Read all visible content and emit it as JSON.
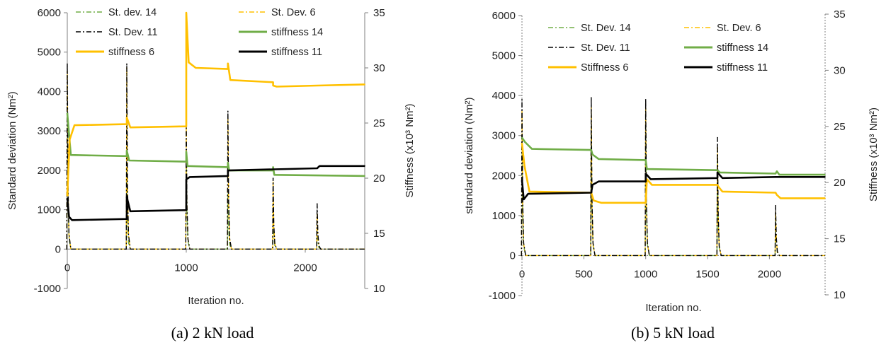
{
  "colors": {
    "orange": "#FFC000",
    "green": "#70AD47",
    "black": "#000000",
    "axis": "#7f7f7f"
  },
  "chart_data": [
    {
      "type": "line",
      "caption": "(a) 2 kN load",
      "xlabel": "Iteration no.",
      "ylabel": "Standard deviation (Nm²)",
      "y2label": "Stiffness (x10³ Nm²)",
      "xticks": [
        0,
        1000,
        2000
      ],
      "xlim": [
        0,
        2500
      ],
      "yticks": [
        -1000,
        0,
        1000,
        2000,
        3000,
        4000,
        5000,
        6000
      ],
      "ylim": [
        -1000,
        6000
      ],
      "y2ticks": [
        10,
        15,
        20,
        25,
        30,
        35
      ],
      "y2lim": [
        10,
        35
      ],
      "legend_position": "top",
      "series": [
        {
          "name": "St. dev. 14",
          "axis": "left",
          "color": "#70AD47",
          "style": "dashdot",
          "spikes": [
            [
              0,
              3600
            ],
            [
              500,
              2000
            ],
            [
              1000,
              2500
            ],
            [
              1350,
              1400
            ],
            [
              1730,
              1100
            ],
            [
              2100,
              500
            ]
          ]
        },
        {
          "name": "St. Dev. 6",
          "axis": "left",
          "color": "#FFC000",
          "style": "dashdot",
          "spikes": [
            [
              0,
              4500
            ],
            [
              500,
              4600
            ],
            [
              1000,
              3100
            ],
            [
              1350,
              3300
            ],
            [
              1730,
              1700
            ],
            [
              2100,
              900
            ]
          ]
        },
        {
          "name": "St. Dev. 11",
          "axis": "left",
          "color": "#000000",
          "style": "dashdot",
          "spikes": [
            [
              0,
              4700
            ],
            [
              500,
              4700
            ],
            [
              1000,
              3200
            ],
            [
              1350,
              3500
            ],
            [
              1730,
              1800
            ],
            [
              2100,
              1150
            ]
          ]
        },
        {
          "name": "stiffness 14",
          "axis": "right",
          "color": "#70AD47",
          "style": "solid",
          "points": [
            [
              0,
              25.9
            ],
            [
              30,
              22.1
            ],
            [
              500,
              22.0
            ],
            [
              500,
              22.5
            ],
            [
              520,
              21.6
            ],
            [
              1000,
              21.5
            ],
            [
              1000,
              22.4
            ],
            [
              1010,
              21.1
            ],
            [
              1350,
              21.0
            ],
            [
              1350,
              21.4
            ],
            [
              1360,
              20.7
            ],
            [
              1730,
              20.7
            ],
            [
              1730,
              21.0
            ],
            [
              1740,
              20.3
            ],
            [
              2500,
              20.2
            ]
          ]
        },
        {
          "name": "stiffness 6",
          "axis": "right",
          "color": "#FFC000",
          "style": "solid",
          "points": [
            [
              0,
              18.4
            ],
            [
              20,
              23.5
            ],
            [
              60,
              24.8
            ],
            [
              500,
              24.9
            ],
            [
              500,
              25.5
            ],
            [
              530,
              24.6
            ],
            [
              1000,
              24.7
            ],
            [
              1000,
              35.0
            ],
            [
              1020,
              30.5
            ],
            [
              1080,
              30.0
            ],
            [
              1350,
              29.9
            ],
            [
              1350,
              30.4
            ],
            [
              1370,
              28.9
            ],
            [
              1730,
              28.7
            ],
            [
              1730,
              28.4
            ],
            [
              1760,
              28.3
            ],
            [
              2100,
              28.4
            ],
            [
              2500,
              28.5
            ]
          ]
        },
        {
          "name": "stiffness 11",
          "axis": "right",
          "color": "#000000",
          "style": "solid",
          "points": [
            [
              0,
              18.2
            ],
            [
              15,
              16.5
            ],
            [
              40,
              16.2
            ],
            [
              500,
              16.3
            ],
            [
              500,
              18.3
            ],
            [
              530,
              17.0
            ],
            [
              1000,
              17.1
            ],
            [
              1000,
              19.9
            ],
            [
              1030,
              20.1
            ],
            [
              1350,
              20.2
            ],
            [
              1350,
              20.7
            ],
            [
              1730,
              20.8
            ],
            [
              2100,
              20.9
            ],
            [
              2120,
              21.1
            ],
            [
              2500,
              21.1
            ]
          ]
        }
      ]
    },
    {
      "type": "line",
      "caption": "(b) 5 kN load",
      "xlabel": "Iteration no.",
      "ylabel": "standard deviation (Nm²)",
      "y2label": "Stiffness (x10³ Nm²)",
      "xticks": [
        0,
        500,
        1000,
        1500,
        2000
      ],
      "xlim": [
        0,
        2450
      ],
      "yticks": [
        -1000,
        0,
        1000,
        2000,
        3000,
        4000,
        5000,
        6000
      ],
      "ylim": [
        -1000,
        6000
      ],
      "y2ticks": [
        10,
        15,
        20,
        25,
        30,
        35
      ],
      "y2lim": [
        10,
        35
      ],
      "legend_position": "top",
      "series": [
        {
          "name": "St. Dev. 14",
          "axis": "left",
          "color": "#70AD47",
          "style": "dashdot",
          "spikes": [
            [
              0,
              3000
            ],
            [
              560,
              3200
            ],
            [
              1000,
              3400
            ],
            [
              1580,
              2400
            ],
            [
              2050,
              900
            ]
          ]
        },
        {
          "name": "St. Dev. 6",
          "axis": "left",
          "color": "#FFC000",
          "style": "dashdot",
          "spikes": [
            [
              0,
              3600
            ],
            [
              560,
              3700
            ],
            [
              1000,
              3700
            ],
            [
              1580,
              2700
            ],
            [
              2050,
              1100
            ]
          ]
        },
        {
          "name": "St. Dev. 11",
          "axis": "left",
          "color": "#000000",
          "style": "dashdot",
          "spikes": [
            [
              0,
              3900
            ],
            [
              560,
              3950
            ],
            [
              1000,
              3900
            ],
            [
              1580,
              2950
            ],
            [
              2050,
              1250
            ]
          ]
        },
        {
          "name": "stiffness 14",
          "axis": "right",
          "color": "#70AD47",
          "style": "solid",
          "points": [
            [
              0,
              24.0
            ],
            [
              25,
              23.6
            ],
            [
              80,
              23.0
            ],
            [
              560,
              22.9
            ],
            [
              570,
              22.5
            ],
            [
              620,
              22.1
            ],
            [
              1000,
              22.0
            ],
            [
              1010,
              21.2
            ],
            [
              1580,
              21.1
            ],
            [
              1600,
              20.9
            ],
            [
              2050,
              20.8
            ],
            [
              2060,
              21.0
            ],
            [
              2080,
              20.7
            ],
            [
              2450,
              20.7
            ]
          ]
        },
        {
          "name": "Stiffness 6",
          "axis": "right",
          "color": "#FFC000",
          "style": "solid",
          "points": [
            [
              0,
              23.5
            ],
            [
              20,
              21.5
            ],
            [
              60,
              19.2
            ],
            [
              560,
              19.1
            ],
            [
              580,
              18.4
            ],
            [
              640,
              18.2
            ],
            [
              1000,
              18.2
            ],
            [
              1010,
              20.3
            ],
            [
              1050,
              19.8
            ],
            [
              1580,
              19.8
            ],
            [
              1590,
              19.6
            ],
            [
              1620,
              19.2
            ],
            [
              2050,
              19.1
            ],
            [
              2060,
              18.9
            ],
            [
              2090,
              18.6
            ],
            [
              2450,
              18.6
            ]
          ]
        },
        {
          "name": "stiffness 11",
          "axis": "right",
          "color": "#000000",
          "style": "solid",
          "points": [
            [
              0,
              20.2
            ],
            [
              15,
              18.5
            ],
            [
              50,
              19.0
            ],
            [
              560,
              19.1
            ],
            [
              570,
              19.8
            ],
            [
              620,
              20.1
            ],
            [
              1000,
              20.1
            ],
            [
              1000,
              20.8
            ],
            [
              1040,
              20.3
            ],
            [
              1580,
              20.4
            ],
            [
              1580,
              20.9
            ],
            [
              1620,
              20.4
            ],
            [
              2050,
              20.5
            ],
            [
              2450,
              20.5
            ]
          ]
        }
      ]
    }
  ]
}
